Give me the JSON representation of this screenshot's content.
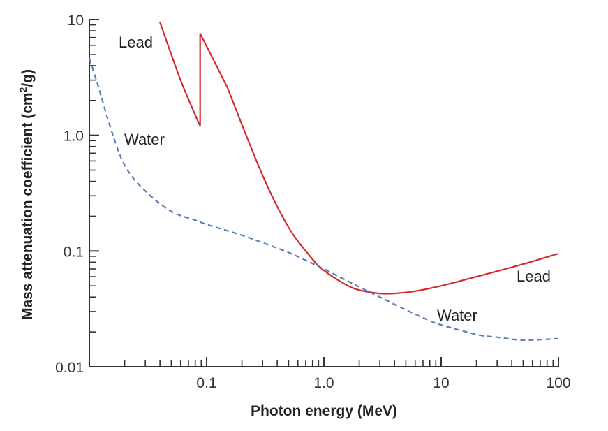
{
  "chart_data": {
    "type": "line",
    "title": "",
    "xlabel": "Photon energy (MeV)",
    "ylabel": "Mass attenuation coefficient (cm²/g)",
    "xscale": "log",
    "yscale": "log",
    "xlim": [
      0.01,
      100
    ],
    "ylim": [
      0.01,
      10
    ],
    "grid": false,
    "legend": "none (series labelled directly on curves)",
    "x_tick_labels": [
      "0.1",
      "1.0",
      "10",
      "100"
    ],
    "x_tick_values": [
      0.1,
      1,
      10,
      100
    ],
    "y_tick_labels": [
      "0.01",
      "0.1",
      "1.0",
      "10"
    ],
    "y_tick_values": [
      0.01,
      0.1,
      1,
      10
    ],
    "series": [
      {
        "name": "Lead",
        "color": "#d42c2c",
        "style": "solid",
        "x": [
          0.04,
          0.06,
          0.088,
          0.088,
          0.15,
          0.3,
          0.5,
          0.8,
          1.0,
          1.5,
          2.0,
          3.0,
          4.0,
          6.0,
          10,
          20,
          50,
          100
        ],
        "y": [
          9.5,
          3.0,
          1.2,
          7.6,
          2.6,
          0.45,
          0.16,
          0.085,
          0.068,
          0.052,
          0.046,
          0.043,
          0.043,
          0.045,
          0.05,
          0.06,
          0.077,
          0.095
        ]
      },
      {
        "name": "Water",
        "color": "#5a7ab8",
        "style": "dashed",
        "x": [
          0.01,
          0.012,
          0.015,
          0.02,
          0.03,
          0.05,
          0.08,
          0.1,
          0.2,
          0.3,
          0.5,
          0.8,
          1.0,
          2.0,
          3.0,
          5.0,
          8.0,
          10,
          20,
          30,
          50,
          100
        ],
        "y": [
          4.6,
          2.6,
          1.2,
          0.55,
          0.33,
          0.22,
          0.185,
          0.17,
          0.137,
          0.118,
          0.097,
          0.078,
          0.07,
          0.049,
          0.04,
          0.031,
          0.025,
          0.023,
          0.019,
          0.018,
          0.017,
          0.0175
        ]
      }
    ],
    "annotations": [
      {
        "text": "Lead",
        "series": "Lead",
        "near": "top-left (low energy)"
      },
      {
        "text": "Water",
        "series": "Water",
        "near": "upper-left"
      },
      {
        "text": "Lead",
        "series": "Lead",
        "near": "right"
      },
      {
        "text": "Water",
        "series": "Water",
        "near": "lower-right"
      }
    ]
  }
}
